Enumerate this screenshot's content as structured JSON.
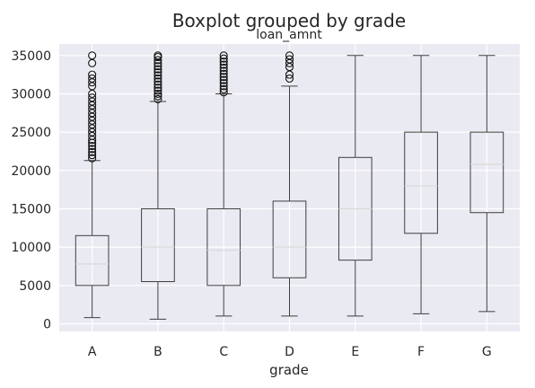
{
  "chart_data": {
    "type": "boxplot",
    "title": "Boxplot grouped by grade",
    "subtitle": "loan_amnt",
    "xlabel": "grade",
    "ylabel": "",
    "ylim": [
      -1000,
      36500
    ],
    "yticks": [
      0,
      5000,
      10000,
      15000,
      20000,
      25000,
      30000,
      35000
    ],
    "grid": true,
    "categories": [
      "A",
      "B",
      "C",
      "D",
      "E",
      "F",
      "G"
    ],
    "boxes": [
      {
        "category": "A",
        "whisker_low": 800,
        "q1": 5000,
        "median": 7800,
        "q3": 11500,
        "whisker_high": 21300,
        "outliers": [
          21600,
          22000,
          22400,
          22800,
          23200,
          23600,
          24000,
          24500,
          25000,
          25500,
          26000,
          26500,
          27000,
          27500,
          28000,
          28500,
          29000,
          29500,
          30000,
          31000,
          31500,
          32000,
          32500,
          34000,
          35000
        ]
      },
      {
        "category": "B",
        "whisker_low": 600,
        "q1": 5500,
        "median": 10000,
        "q3": 15000,
        "whisker_high": 29000,
        "outliers": [
          29300,
          29700,
          30000,
          30400,
          30800,
          31200,
          31600,
          32000,
          32400,
          32800,
          33200,
          33600,
          34000,
          34400,
          34800,
          35000
        ]
      },
      {
        "category": "C",
        "whisker_low": 1000,
        "q1": 5000,
        "median": 9600,
        "q3": 15000,
        "whisker_high": 30000,
        "outliers": [
          30200,
          30600,
          31000,
          31400,
          31800,
          32200,
          32600,
          33000,
          33400,
          33800,
          34200,
          34600,
          35000
        ]
      },
      {
        "category": "D",
        "whisker_low": 1000,
        "q1": 6000,
        "median": 10000,
        "q3": 16000,
        "whisker_high": 31000,
        "outliers": [
          32000,
          32500,
          33500,
          34000,
          34500,
          35000
        ]
      },
      {
        "category": "E",
        "whisker_low": 1000,
        "q1": 8300,
        "median": 15000,
        "q3": 21700,
        "whisker_high": 35000,
        "outliers": []
      },
      {
        "category": "F",
        "whisker_low": 1300,
        "q1": 11800,
        "median": 18000,
        "q3": 25000,
        "whisker_high": 35000,
        "outliers": []
      },
      {
        "category": "G",
        "whisker_low": 1600,
        "q1": 14500,
        "median": 20800,
        "q3": 25000,
        "whisker_high": 35000,
        "outliers": []
      }
    ],
    "colors": {
      "plot_background": "#eaeaf2",
      "grid": "#ffffff",
      "box": "#3f3f3f",
      "median": "#d9d9d9",
      "text": "#262626"
    }
  }
}
